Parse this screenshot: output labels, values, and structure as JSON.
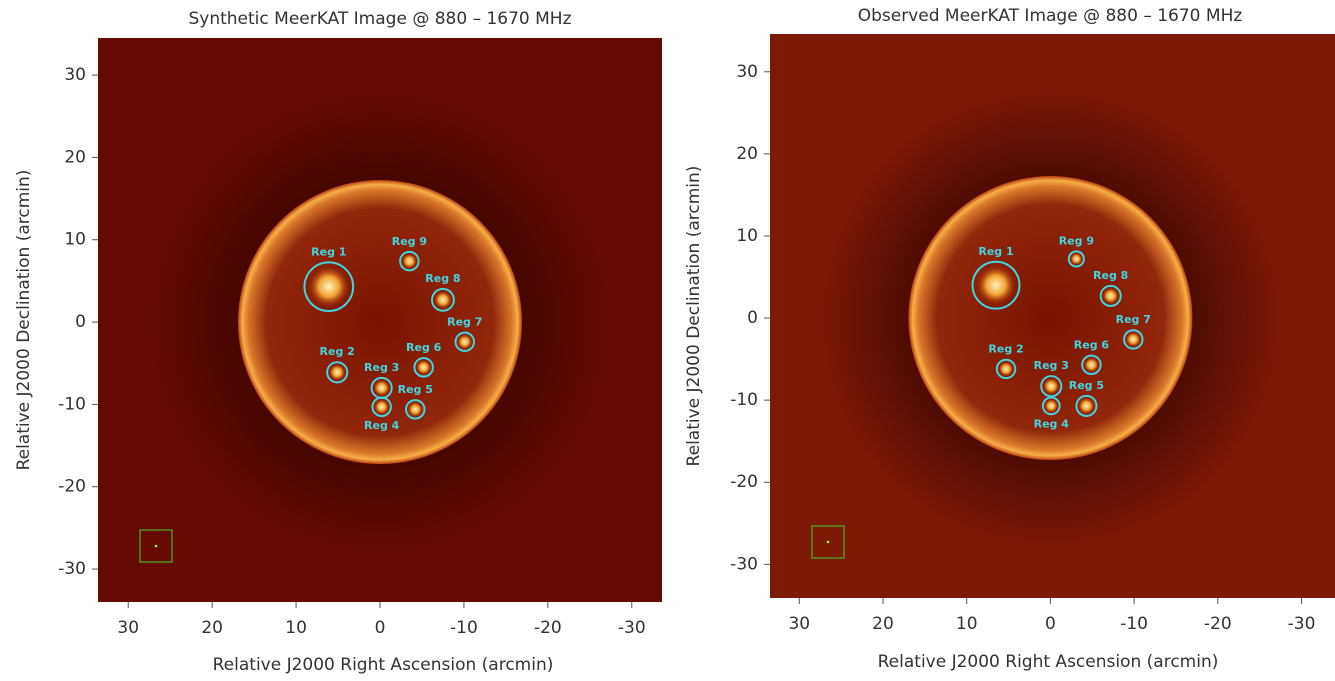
{
  "chart_data": [
    {
      "type": "image",
      "title": "Synthetic MeerKAT Image @ 880 – 1670 MHz",
      "x_label": "Relative J2000 Right Ascension (arcmin)",
      "y_label": "Relative J2000 Declination (arcmin)",
      "xlim": [
        33.6,
        -33.6
      ],
      "ylim": [
        -34,
        34.5
      ],
      "xticks": [
        30,
        20,
        10,
        0,
        -10,
        -20,
        -30
      ],
      "yticks": [
        30,
        20,
        10,
        0,
        -10,
        -20,
        -30
      ],
      "region_color": "#3fd6e2",
      "regions": [
        {
          "label": "Reg 1",
          "x": 6.1,
          "y": 4.3,
          "radius": 2.9
        },
        {
          "label": "Reg 2",
          "x": 5.1,
          "y": -6.1,
          "radius": 1.2
        },
        {
          "label": "Reg 3",
          "x": -0.2,
          "y": -8.0,
          "radius": 1.2
        },
        {
          "label": "Reg 4",
          "x": -0.2,
          "y": -10.3,
          "radius": 1.1
        },
        {
          "label": "Reg 5",
          "x": -4.2,
          "y": -10.6,
          "radius": 1.1
        },
        {
          "label": "Reg 6",
          "x": -5.2,
          "y": -5.5,
          "radius": 1.1
        },
        {
          "label": "Reg 7",
          "x": -10.1,
          "y": -2.4,
          "radius": 1.1
        },
        {
          "label": "Reg 8",
          "x": -7.5,
          "y": 2.7,
          "radius": 1.3
        },
        {
          "label": "Reg 9",
          "x": -3.5,
          "y": 7.4,
          "radius": 1.1
        }
      ]
    },
    {
      "type": "image",
      "title": "Observed MeerKAT Image @ 880 – 1670 MHz",
      "x_label": "Relative J2000 Right Ascension (arcmin)",
      "y_label": "Relative J2000 Declination (arcmin)",
      "xlim": [
        33.5,
        -34
      ],
      "ylim": [
        -34.1,
        34.6
      ],
      "xticks": [
        30,
        20,
        10,
        0,
        -10,
        -20,
        -30
      ],
      "yticks": [
        30,
        20,
        10,
        0,
        -10,
        -20,
        -30
      ],
      "region_color": "#3fd6e2",
      "regions": [
        {
          "label": "Reg 1",
          "x": 6.5,
          "y": 4.0,
          "radius": 2.8
        },
        {
          "label": "Reg 2",
          "x": 5.3,
          "y": -6.2,
          "radius": 1.1
        },
        {
          "label": "Reg 3",
          "x": -0.1,
          "y": -8.3,
          "radius": 1.2
        },
        {
          "label": "Reg 4",
          "x": -0.1,
          "y": -10.7,
          "radius": 1.0
        },
        {
          "label": "Reg 5",
          "x": -4.3,
          "y": -10.7,
          "radius": 1.2
        },
        {
          "label": "Reg 6",
          "x": -4.9,
          "y": -5.7,
          "radius": 1.1
        },
        {
          "label": "Reg 7",
          "x": -9.9,
          "y": -2.6,
          "radius": 1.1
        },
        {
          "label": "Reg 8",
          "x": -7.2,
          "y": 2.7,
          "radius": 1.2
        },
        {
          "label": "Reg 9",
          "x": -3.1,
          "y": 7.2,
          "radius": 0.9
        }
      ]
    }
  ]
}
